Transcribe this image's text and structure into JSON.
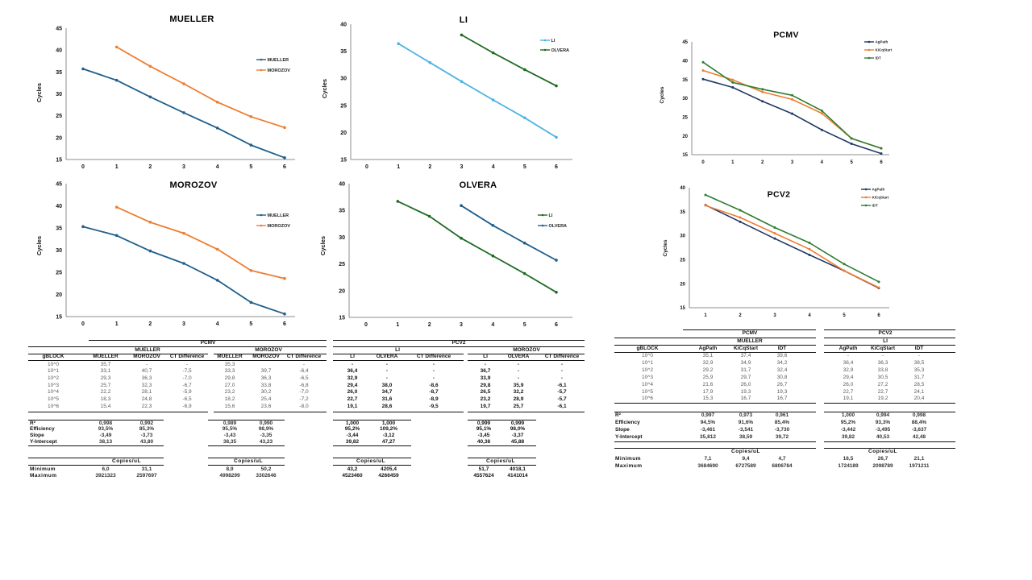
{
  "chart_data": [
    {
      "type": "line",
      "title": "MUELLER",
      "xlabel": "",
      "ylabel": "Cycles",
      "x": [
        0,
        1,
        2,
        3,
        4,
        5,
        6
      ],
      "ylim": [
        15,
        45
      ],
      "yticks": [
        15,
        20,
        25,
        30,
        35,
        40,
        45
      ],
      "grid": false,
      "legend": "right",
      "series": [
        {
          "name": "MUELLER",
          "color": "#1F5F8B",
          "values": [
            35.7,
            33.1,
            29.3,
            25.7,
            22.2,
            18.3,
            15.4
          ]
        },
        {
          "name": "MOROZOV",
          "color": "#ED7D31",
          "values": [
            null,
            40.7,
            36.3,
            32.3,
            28.1,
            24.8,
            22.3
          ]
        }
      ]
    },
    {
      "type": "line",
      "title": "LI",
      "xlabel": "",
      "ylabel": "Cycles",
      "x": [
        0,
        1,
        2,
        3,
        4,
        5,
        6
      ],
      "ylim": [
        15,
        40
      ],
      "yticks": [
        15,
        20,
        25,
        30,
        35,
        40
      ],
      "grid": false,
      "legend": "top-right",
      "series": [
        {
          "name": "LI",
          "color": "#4EB3E3",
          "values": [
            null,
            36.4,
            32.9,
            29.4,
            26.0,
            22.7,
            19.1
          ]
        },
        {
          "name": "OLVERA",
          "color": "#1E6B22",
          "values": [
            null,
            null,
            null,
            38.0,
            34.7,
            31.6,
            28.6
          ]
        }
      ]
    },
    {
      "type": "line",
      "title": "MOROZOV",
      "xlabel": "",
      "ylabel": "Cycles",
      "x": [
        0,
        1,
        2,
        3,
        4,
        5,
        6
      ],
      "ylim": [
        15,
        45
      ],
      "yticks": [
        15,
        20,
        25,
        30,
        35,
        40,
        45
      ],
      "grid": false,
      "legend": "right",
      "series": [
        {
          "name": "MUELLER",
          "color": "#1F5F8B",
          "values": [
            35.3,
            33.3,
            29.8,
            27.0,
            23.2,
            18.2,
            15.6
          ]
        },
        {
          "name": "MOROZOV",
          "color": "#ED7D31",
          "values": [
            null,
            39.7,
            36.3,
            33.8,
            30.2,
            25.4,
            23.6
          ]
        }
      ]
    },
    {
      "type": "line",
      "title": "OLVERA",
      "xlabel": "",
      "ylabel": "Cycles",
      "x": [
        0,
        1,
        2,
        3,
        4,
        5,
        6
      ],
      "ylim": [
        15,
        40
      ],
      "yticks": [
        15,
        20,
        25,
        30,
        35,
        40
      ],
      "grid": false,
      "legend": "right",
      "series": [
        {
          "name": "LI",
          "color": "#1E6B22",
          "values": [
            null,
            36.7,
            33.9,
            29.8,
            26.5,
            23.2,
            19.7
          ]
        },
        {
          "name": "OLVERA",
          "color": "#1F5F8B",
          "values": [
            null,
            null,
            null,
            35.9,
            32.2,
            28.9,
            25.7
          ]
        }
      ]
    },
    {
      "type": "line",
      "title": "PCMV",
      "xlabel": "",
      "ylabel": "Cycles",
      "x": [
        0,
        1,
        2,
        3,
        4,
        5,
        6
      ],
      "ylim": [
        15,
        45
      ],
      "yticks": [
        15,
        20,
        25,
        30,
        35,
        40,
        45
      ],
      "grid": false,
      "legend": "top-right",
      "series": [
        {
          "name": "AgPath",
          "color": "#1F3864",
          "values": [
            35.1,
            32.9,
            29.2,
            25.9,
            21.6,
            17.9,
            15.3
          ]
        },
        {
          "name": "KiCqStart",
          "color": "#ED7D31",
          "values": [
            37.4,
            34.9,
            31.7,
            29.7,
            26.0,
            19.3,
            16.7
          ]
        },
        {
          "name": "IDT",
          "color": "#2E7D32",
          "values": [
            39.6,
            34.2,
            32.4,
            30.8,
            26.7,
            19.3,
            16.7
          ]
        }
      ]
    },
    {
      "type": "line",
      "title": "PCV2",
      "xlabel": "",
      "ylabel": "Cycles",
      "x": [
        1,
        2,
        3,
        4,
        5,
        6
      ],
      "ylim": [
        15,
        40
      ],
      "yticks": [
        15,
        20,
        25,
        30,
        35,
        40
      ],
      "grid": false,
      "legend": "top-right",
      "series": [
        {
          "name": "AgPath",
          "color": "#1F3864",
          "values": [
            36.4,
            32.9,
            29.4,
            26.0,
            22.7,
            19.1
          ]
        },
        {
          "name": "KiCqStart",
          "color": "#ED7D31",
          "values": [
            36.3,
            33.8,
            30.5,
            27.2,
            22.7,
            19.2
          ]
        },
        {
          "name": "IDT",
          "color": "#2E7D32",
          "values": [
            38.5,
            35.3,
            31.7,
            28.5,
            24.1,
            20.4
          ]
        }
      ]
    }
  ],
  "tables": [
    {
      "title": "PCMV",
      "row_header": "gBLOCK",
      "row_labels": [
        "10^0",
        "10^1",
        "10^2",
        "10^3",
        "10^4",
        "10^5",
        "10^6"
      ],
      "stat_labels": [
        "R²",
        "Efficiency",
        "Slope",
        "Y-Intercept"
      ],
      "copies_title": "Copies/uL",
      "copies_labels": [
        "Minimum",
        "Maximum"
      ],
      "groups": [
        {
          "name": "MUELLER",
          "columns": [
            "MUELLER",
            "MOROZOV",
            "CT Difference"
          ],
          "rows": [
            [
              "35,7",
              "-",
              "-"
            ],
            [
              "33,1",
              "40,7",
              "-7,5"
            ],
            [
              "29,3",
              "36,3",
              "-7,0"
            ],
            [
              "25,7",
              "32,3",
              "-6,7"
            ],
            [
              "22,2",
              "28,1",
              "-5,9"
            ],
            [
              "18,3",
              "24,8",
              "-6,5"
            ],
            [
              "15,4",
              "22,3",
              "-6,9"
            ]
          ],
          "stats": [
            [
              "0,998",
              "0,992"
            ],
            [
              "93,5%",
              "85,3%"
            ],
            [
              "-3,49",
              "-3,73"
            ],
            [
              "38,13",
              "43,80"
            ]
          ],
          "copies": [
            [
              "6,0",
              "31,1"
            ],
            [
              "3921323",
              "2597697"
            ]
          ]
        },
        {
          "name": "MOROZOV",
          "columns": [
            "MUELLER",
            "MOROZOV",
            "CT Difference"
          ],
          "rows": [
            [
              "35,3",
              "",
              "-"
            ],
            [
              "33,3",
              "39,7",
              "-6,4"
            ],
            [
              "29,8",
              "36,3",
              "-6,5"
            ],
            [
              "27,0",
              "33,8",
              "-6,8"
            ],
            [
              "23,2",
              "30,2",
              "-7,0"
            ],
            [
              "18,2",
              "25,4",
              "-7,2"
            ],
            [
              "15,6",
              "23,6",
              "-8,0"
            ]
          ],
          "stats": [
            [
              "0,989",
              "0,990"
            ],
            [
              "95,5%",
              "98,9%"
            ],
            [
              "-3,43",
              "-3,35"
            ],
            [
              "38,35",
              "43,23"
            ]
          ],
          "copies": [
            [
              "8,9",
              "50,2"
            ],
            [
              "4998299",
              "3302646"
            ]
          ]
        }
      ]
    },
    {
      "title": "PCV2",
      "copies_title": "Copies/uL",
      "groups": [
        {
          "name": "LI",
          "columns": [
            "LI",
            "OLVERA",
            "CT Difference"
          ],
          "rows": [
            [
              "-",
              "-",
              "-"
            ],
            [
              "36,4",
              "-",
              "-"
            ],
            [
              "32,9",
              "-",
              "-"
            ],
            [
              "29,4",
              "38,0",
              "-8,6"
            ],
            [
              "26,0",
              "34,7",
              "-8,7"
            ],
            [
              "22,7",
              "31,6",
              "-8,9"
            ],
            [
              "19,1",
              "28,6",
              "-9,5"
            ]
          ],
          "stats": [
            [
              "1,000",
              "1,000"
            ],
            [
              "95,2%",
              "109,2%"
            ],
            [
              "-3,44",
              "-3,12"
            ],
            [
              "39,82",
              "47,27"
            ]
          ],
          "copies": [
            [
              "43,2",
              "4205,4"
            ],
            [
              "4523460",
              "4266459"
            ]
          ]
        },
        {
          "name": "MOROZOV",
          "columns": [
            "LI",
            "OLVERA",
            "CT Difference"
          ],
          "rows": [
            [
              "-",
              "-",
              "-"
            ],
            [
              "36,7",
              "-",
              "-"
            ],
            [
              "33,9",
              "-",
              "-"
            ],
            [
              "29,8",
              "35,9",
              "-6,1"
            ],
            [
              "26,5",
              "32,2",
              "-5,7"
            ],
            [
              "23,2",
              "28,9",
              "-5,7"
            ],
            [
              "19,7",
              "25,7",
              "-6,1"
            ]
          ],
          "stats": [
            [
              "0,999",
              "0,999"
            ],
            [
              "95,1%",
              "98,0%"
            ],
            [
              "-3,45",
              "-3,37"
            ],
            [
              "40,38",
              "45,88"
            ]
          ],
          "copies": [
            [
              "51,7",
              "4018,1"
            ],
            [
              "4557624",
              "4141014"
            ]
          ]
        }
      ]
    },
    {
      "title": "PCMV",
      "row_header": "gBLOCK",
      "row_labels": [
        "10^0",
        "10^1",
        "10^2",
        "10^3",
        "10^4",
        "10^5",
        "10^6"
      ],
      "stat_labels": [
        "R²",
        "Efficiency",
        "Slope",
        "Y-Intercept"
      ],
      "copies_title": "Copies/uL",
      "copies_labels": [
        "Minimum",
        "Maximum"
      ],
      "groups": [
        {
          "name": "MUELLER",
          "columns": [
            "AgPath",
            "KiCqStart",
            "IDT"
          ],
          "rows": [
            [
              "35,1",
              "37,4",
              "39,6"
            ],
            [
              "32,9",
              "34,9",
              "34,2"
            ],
            [
              "29,2",
              "31,7",
              "32,4"
            ],
            [
              "25,9",
              "29,7",
              "30,8"
            ],
            [
              "21,6",
              "26,0",
              "26,7"
            ],
            [
              "17,9",
              "19,3",
              "19,3"
            ],
            [
              "15,3",
              "16,7",
              "16,7"
            ]
          ],
          "stats": [
            [
              "0,997",
              "0,973",
              "0,961"
            ],
            [
              "94,5%",
              "91,6%",
              "85,4%"
            ],
            [
              "-3,461",
              "-3,541",
              "-3,730"
            ],
            [
              "35,812",
              "38,59",
              "39,72"
            ]
          ],
          "copies": [
            [
              "7,1",
              "9,4",
              "4,7"
            ],
            [
              "3684690",
              "6727589",
              "6806784"
            ]
          ]
        }
      ]
    },
    {
      "title": "PCV2",
      "copies_title": "Copies/uL",
      "groups": [
        {
          "name": "LI",
          "columns": [
            "AgPath",
            "KiCqStart",
            "IDT"
          ],
          "rows": [
            [
              "-",
              "-",
              "-"
            ],
            [
              "36,4",
              "36,3",
              "38,5"
            ],
            [
              "32,9",
              "33,8",
              "35,3"
            ],
            [
              "29,4",
              "30,5",
              "31,7"
            ],
            [
              "26,0",
              "27,2",
              "28,5"
            ],
            [
              "22,7",
              "22,7",
              "24,1"
            ],
            [
              "19,1",
              "19,2",
              "20,4"
            ]
          ],
          "stats": [
            [
              "1,000",
              "0,994",
              "0,998"
            ],
            [
              "95,2%",
              "93,3%",
              "88,4%"
            ],
            [
              "-3,442",
              "-3,495",
              "-3,637"
            ],
            [
              "39,82",
              "40,53",
              "42,48"
            ]
          ],
          "copies": [
            [
              "16,5",
              "26,7",
              "21,1"
            ],
            [
              "1724189",
              "2098789",
              "1971211"
            ]
          ]
        }
      ]
    }
  ]
}
